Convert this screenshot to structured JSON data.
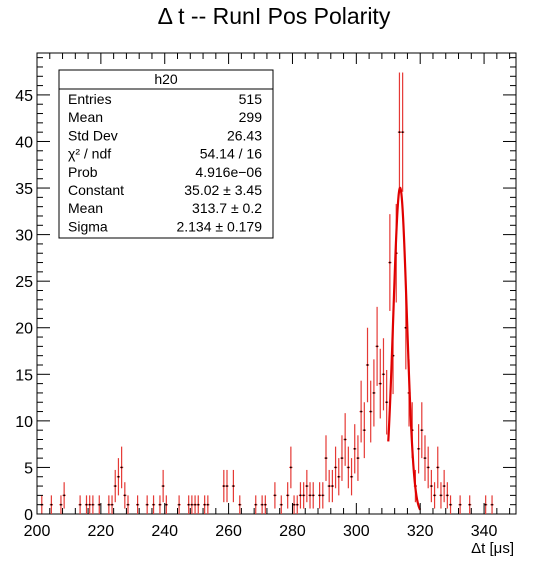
{
  "chart_data": {
    "type": "histogram",
    "title": "Δ t -- RunI Pos Polarity",
    "xlabel": "Δt [μs]",
    "ylabel": "",
    "xlim": [
      200,
      350
    ],
    "ylim": [
      0,
      49.5
    ],
    "x_ticks": [
      200,
      220,
      240,
      260,
      280,
      300,
      320,
      340
    ],
    "y_ticks": [
      0,
      5,
      10,
      15,
      20,
      25,
      30,
      35,
      40,
      45
    ],
    "bin_width": 1,
    "grid": false,
    "colors": {
      "data": "#e53935",
      "fit": "#e00000",
      "axis": "#000000"
    },
    "series": [
      {
        "values": [
          {
            "x": 201.5,
            "y": 1
          },
          {
            "x": 204.5,
            "y": 1
          },
          {
            "x": 207.5,
            "y": 1
          },
          {
            "x": 208.5,
            "y": 2
          },
          {
            "x": 213.5,
            "y": 1
          },
          {
            "x": 215.5,
            "y": 1
          },
          {
            "x": 216.5,
            "y": 1
          },
          {
            "x": 217.5,
            "y": 1
          },
          {
            "x": 219.5,
            "y": 1
          },
          {
            "x": 222.5,
            "y": 1
          },
          {
            "x": 223.5,
            "y": 1
          },
          {
            "x": 224.5,
            "y": 3
          },
          {
            "x": 225.5,
            "y": 4
          },
          {
            "x": 226.5,
            "y": 5
          },
          {
            "x": 227.5,
            "y": 2
          },
          {
            "x": 228.5,
            "y": 1
          },
          {
            "x": 231.5,
            "y": 1
          },
          {
            "x": 234.5,
            "y": 1
          },
          {
            "x": 236.5,
            "y": 1
          },
          {
            "x": 238.5,
            "y": 1
          },
          {
            "x": 239.5,
            "y": 3
          },
          {
            "x": 240.5,
            "y": 1
          },
          {
            "x": 244.5,
            "y": 1
          },
          {
            "x": 247.5,
            "y": 1
          },
          {
            "x": 248.5,
            "y": 1
          },
          {
            "x": 249.5,
            "y": 1
          },
          {
            "x": 250.5,
            "y": 1
          },
          {
            "x": 252.5,
            "y": 1
          },
          {
            "x": 253.5,
            "y": 1
          },
          {
            "x": 258.5,
            "y": 3
          },
          {
            "x": 259.5,
            "y": 3
          },
          {
            "x": 261.5,
            "y": 3
          },
          {
            "x": 263.5,
            "y": 1
          },
          {
            "x": 268.5,
            "y": 1
          },
          {
            "x": 270.5,
            "y": 1
          },
          {
            "x": 271.5,
            "y": 1
          },
          {
            "x": 274.5,
            "y": 2
          },
          {
            "x": 276.5,
            "y": 1
          },
          {
            "x": 278.5,
            "y": 2
          },
          {
            "x": 279.5,
            "y": 5
          },
          {
            "x": 280.5,
            "y": 1
          },
          {
            "x": 281.5,
            "y": 1
          },
          {
            "x": 282.5,
            "y": 2
          },
          {
            "x": 283.5,
            "y": 2
          },
          {
            "x": 284.5,
            "y": 3
          },
          {
            "x": 285.5,
            "y": 2
          },
          {
            "x": 286.5,
            "y": 2
          },
          {
            "x": 288.5,
            "y": 2
          },
          {
            "x": 289.5,
            "y": 2
          },
          {
            "x": 290.5,
            "y": 6
          },
          {
            "x": 291.5,
            "y": 3
          },
          {
            "x": 292.5,
            "y": 3
          },
          {
            "x": 293.5,
            "y": 5
          },
          {
            "x": 294.5,
            "y": 4
          },
          {
            "x": 295.5,
            "y": 6
          },
          {
            "x": 296.5,
            "y": 8
          },
          {
            "x": 297.5,
            "y": 5
          },
          {
            "x": 298.5,
            "y": 4
          },
          {
            "x": 299.5,
            "y": 7
          },
          {
            "x": 300.5,
            "y": 6
          },
          {
            "x": 301.5,
            "y": 11
          },
          {
            "x": 302.5,
            "y": 9
          },
          {
            "x": 303.5,
            "y": 16
          },
          {
            "x": 304.5,
            "y": 11
          },
          {
            "x": 305.5,
            "y": 13
          },
          {
            "x": 306.5,
            "y": 18
          },
          {
            "x": 307.5,
            "y": 14
          },
          {
            "x": 308.5,
            "y": 15
          },
          {
            "x": 309.5,
            "y": 12
          },
          {
            "x": 310.5,
            "y": 27
          },
          {
            "x": 311.5,
            "y": 17
          },
          {
            "x": 312.5,
            "y": 28
          },
          {
            "x": 313.5,
            "y": 41
          },
          {
            "x": 314.5,
            "y": 41
          },
          {
            "x": 315.5,
            "y": 20
          },
          {
            "x": 316.5,
            "y": 13
          },
          {
            "x": 317.5,
            "y": 9
          },
          {
            "x": 318.5,
            "y": 3
          },
          {
            "x": 319.5,
            "y": 7
          },
          {
            "x": 320.5,
            "y": 9
          },
          {
            "x": 321.5,
            "y": 6
          },
          {
            "x": 322.5,
            "y": 5
          },
          {
            "x": 323.5,
            "y": 3
          },
          {
            "x": 324.5,
            "y": 2
          },
          {
            "x": 325.5,
            "y": 5
          },
          {
            "x": 326.5,
            "y": 2
          },
          {
            "x": 327.5,
            "y": 3
          },
          {
            "x": 328.5,
            "y": 2
          },
          {
            "x": 329.5,
            "y": 1
          },
          {
            "x": 332.5,
            "y": 1
          },
          {
            "x": 335.5,
            "y": 1
          },
          {
            "x": 340.5,
            "y": 1
          },
          {
            "x": 342.5,
            "y": 1
          }
        ]
      }
    ],
    "fit": {
      "function": "gaus",
      "constant": 35.02,
      "mean": 313.7,
      "sigma": 2.134,
      "x_range": [
        310,
        320
      ]
    },
    "stats_box": {
      "name": "h20",
      "position": "top-left",
      "rows": [
        {
          "label": "Entries",
          "value": "515"
        },
        {
          "label": "Mean",
          "value": "299"
        },
        {
          "label": "Std Dev",
          "value": "26.43"
        },
        {
          "label": "χ² / ndf",
          "value": "54.14 / 16"
        },
        {
          "label": "Prob",
          "value": "4.916e−06"
        },
        {
          "label": "Constant",
          "value": "35.02 ± 3.45"
        },
        {
          "label": "Mean",
          "value": "313.7 ± 0.2"
        },
        {
          "label": "Sigma",
          "value": "2.134 ± 0.179"
        }
      ]
    }
  }
}
